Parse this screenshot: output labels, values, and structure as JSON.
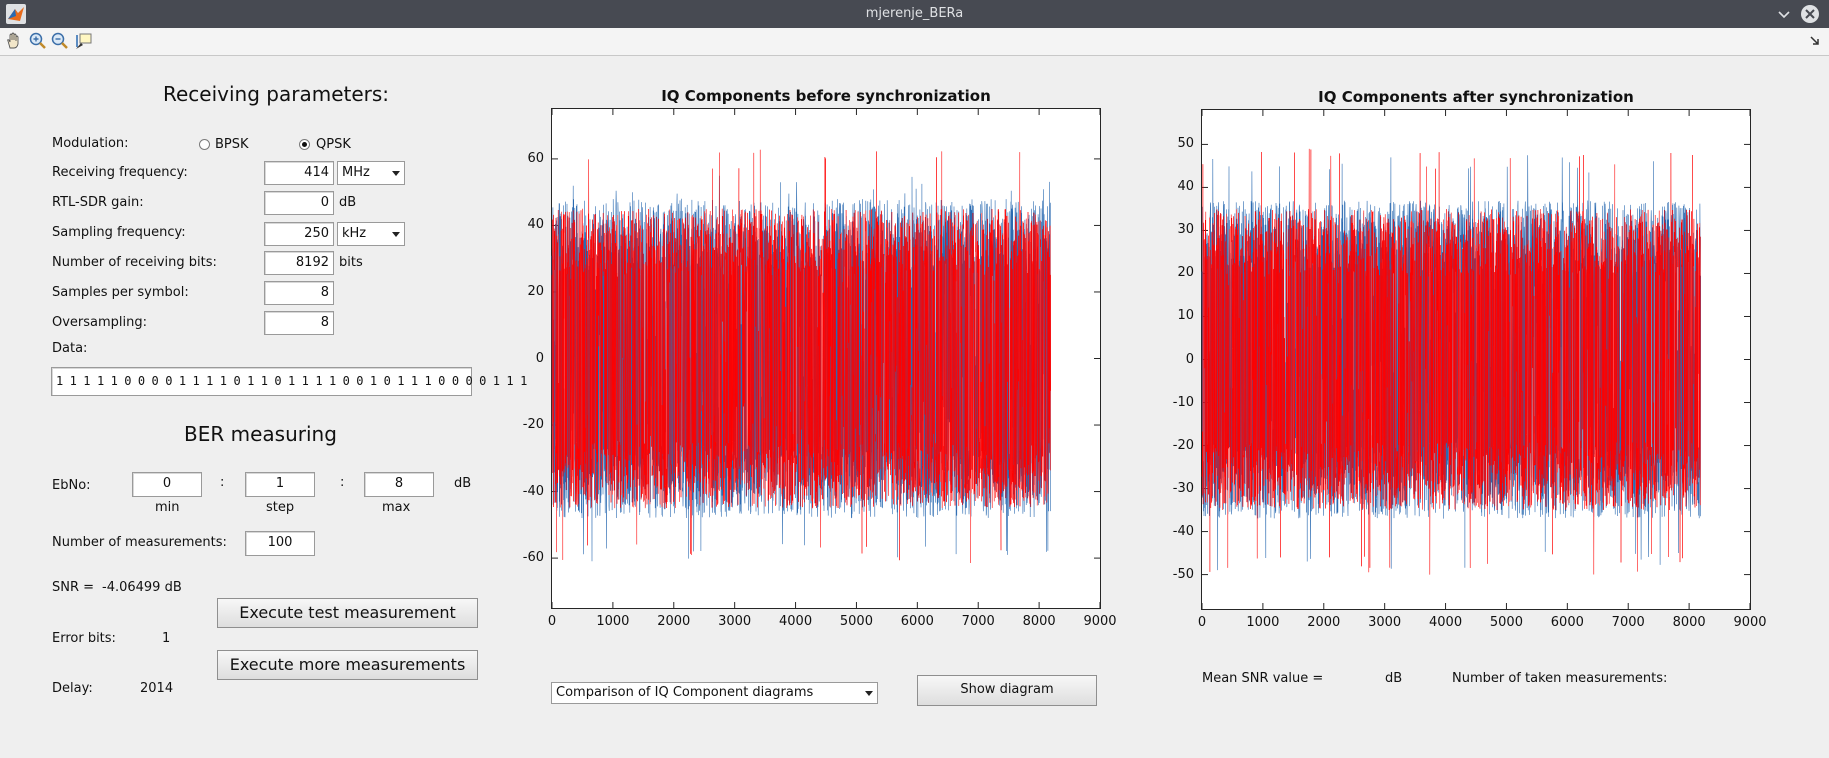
{
  "window": {
    "title": "mjerenje_BERa"
  },
  "toolbar": {
    "icons": [
      "pan-icon",
      "zoom-in-icon",
      "zoom-out-icon",
      "data-cursor-icon"
    ]
  },
  "receiving": {
    "title": "Receiving parameters:",
    "modulation_label": "Modulation:",
    "bpsk_label": "BPSK",
    "qpsk_label": "QPSK",
    "selected_modulation": "QPSK",
    "rx_freq_label": "Receiving frequency:",
    "rx_freq_value": "414",
    "rx_freq_unit": "MHz",
    "gain_label": "RTL-SDR gain:",
    "gain_value": "0",
    "gain_unit": "dB",
    "samp_freq_label": "Sampling frequency:",
    "samp_freq_value": "250",
    "samp_freq_unit": "kHz",
    "num_bits_label": "Number of receiving bits:",
    "num_bits_value": "8192",
    "num_bits_unit": "bits",
    "sps_label": "Samples per symbol:",
    "sps_value": "8",
    "oversampling_label": "Oversampling:",
    "oversampling_value": "8",
    "data_label": "Data:",
    "data_value": "1 1 1 1 1 0 0 0 0 1 1 1 1 0 1 1 0 1 1 1 1 0 0 1 0 1 1 1 0 0 0 0 1 1 1"
  },
  "ber": {
    "title": "BER measuring",
    "ebno_label": "EbNo:",
    "min_value": "0",
    "step_value": "1",
    "max_value": "8",
    "sep": ":",
    "unit": "dB",
    "min_label": "min",
    "step_label": "step",
    "max_label": "max",
    "num_meas_label": "Number of measurements:",
    "num_meas_value": "100",
    "snr_label": "SNR =",
    "snr_value": "-4.06499 dB",
    "exec_test_label": "Execute test measurement",
    "error_bits_label": "Error bits:",
    "error_bits_value": "1",
    "exec_more_label": "Execute more measurements",
    "delay_label": "Delay:",
    "delay_value": "2014"
  },
  "diagram_select": {
    "value": "Comparison of IQ Component diagrams",
    "show_label": "Show diagram"
  },
  "stats": {
    "mean_snr_label": "Mean SNR value =",
    "mean_snr_unit": "dB",
    "num_taken_label": "Number of taken measurements:"
  },
  "colors": {
    "in_phase": "#2a6ab1",
    "quadrature": "#ff0000",
    "background": "#efefef",
    "titlebar": "#474a52"
  },
  "chart_data": [
    {
      "type": "line",
      "title": "IQ Components before synchronization",
      "xlabel": "",
      "ylabel": "",
      "xlim": [
        0,
        9000
      ],
      "ylim": [
        -75,
        75
      ],
      "xticks": [
        0,
        1000,
        2000,
        3000,
        4000,
        5000,
        6000,
        7000,
        8000,
        9000
      ],
      "yticks": [
        -60,
        -40,
        -20,
        0,
        20,
        40,
        60
      ],
      "n_samples": 8192,
      "series": [
        {
          "color": "#2a6ab1",
          "approx_range": [
            -61,
            55
          ],
          "typical_band": [
            -48,
            48
          ]
        },
        {
          "color": "#ff0000",
          "approx_range": [
            -62,
            63
          ],
          "typical_band": [
            -45,
            45
          ]
        }
      ]
    },
    {
      "type": "line",
      "title": "IQ Components after synchronization",
      "xlabel": "",
      "ylabel": "",
      "xlim": [
        0,
        9000
      ],
      "ylim": [
        -58,
        58
      ],
      "xticks": [
        0,
        1000,
        2000,
        3000,
        4000,
        5000,
        6000,
        7000,
        8000,
        9000
      ],
      "yticks": [
        -50,
        -40,
        -30,
        -20,
        -10,
        0,
        10,
        20,
        30,
        40,
        50
      ],
      "n_samples": 8192,
      "series": [
        {
          "color": "#2a6ab1",
          "approx_range": [
            -49,
            48
          ],
          "typical_band": [
            -37,
            37
          ]
        },
        {
          "color": "#ff0000",
          "approx_range": [
            -50,
            49
          ],
          "typical_band": [
            -35,
            35
          ]
        }
      ]
    }
  ]
}
